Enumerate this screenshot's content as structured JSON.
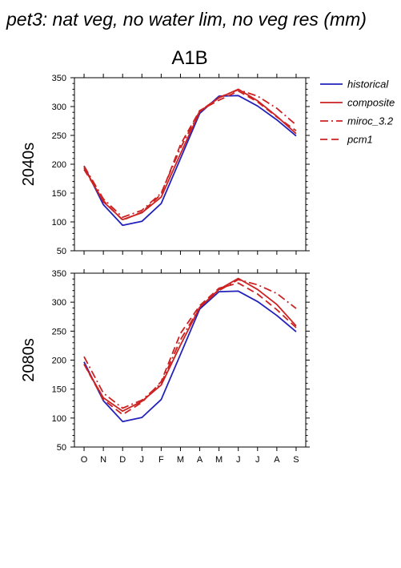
{
  "figure": {
    "title": "pet3: nat veg, no water lim, no veg res (mm)",
    "column_title": "A1B"
  },
  "legend": [
    {
      "name": "historical",
      "color": "#2222bb",
      "dash": "solid"
    },
    {
      "name": "composite",
      "color": "#cc2222",
      "dash": "solid"
    },
    {
      "name": "miroc_3.2",
      "color": "#cc2222",
      "dash": "dashdot"
    },
    {
      "name": "pcm1",
      "color": "#cc2222",
      "dash": "dashed"
    }
  ],
  "chart_data": [
    {
      "type": "line",
      "row_label": "2040s",
      "categories": [
        "O",
        "N",
        "D",
        "J",
        "F",
        "M",
        "A",
        "M",
        "J",
        "J",
        "A",
        "S"
      ],
      "ylim": [
        50,
        350
      ],
      "yticks": [
        50,
        100,
        150,
        200,
        250,
        300,
        350
      ],
      "series": [
        {
          "name": "historical",
          "values": [
            197,
            130,
            94,
            101,
            132,
            210,
            288,
            318,
            319,
            301,
            277,
            249
          ]
        },
        {
          "name": "composite",
          "values": [
            194,
            135,
            104,
            116,
            143,
            218,
            291,
            315,
            330,
            310,
            283,
            253
          ]
        },
        {
          "name": "miroc_3.2",
          "values": [
            197,
            140,
            108,
            120,
            150,
            228,
            292,
            316,
            329,
            318,
            297,
            268
          ]
        },
        {
          "name": "pcm1",
          "values": [
            191,
            137,
            103,
            117,
            148,
            234,
            293,
            311,
            327,
            308,
            282,
            258
          ]
        }
      ]
    },
    {
      "type": "line",
      "row_label": "2080s",
      "categories": [
        "O",
        "N",
        "D",
        "J",
        "F",
        "M",
        "A",
        "M",
        "J",
        "J",
        "A",
        "S"
      ],
      "ylim": [
        50,
        350
      ],
      "yticks": [
        50,
        100,
        150,
        200,
        250,
        300,
        350
      ],
      "series": [
        {
          "name": "historical",
          "values": [
            197,
            130,
            94,
            101,
            132,
            210,
            288,
            318,
            319,
            301,
            277,
            249
          ]
        },
        {
          "name": "composite",
          "values": [
            193,
            135,
            112,
            129,
            157,
            226,
            291,
            322,
            341,
            322,
            296,
            259
          ]
        },
        {
          "name": "miroc_3.2",
          "values": [
            206,
            143,
            117,
            131,
            160,
            235,
            291,
            320,
            339,
            330,
            315,
            289
          ]
        },
        {
          "name": "pcm1",
          "values": [
            193,
            132,
            106,
            127,
            163,
            246,
            294,
            324,
            333,
            314,
            287,
            256
          ]
        }
      ]
    }
  ]
}
